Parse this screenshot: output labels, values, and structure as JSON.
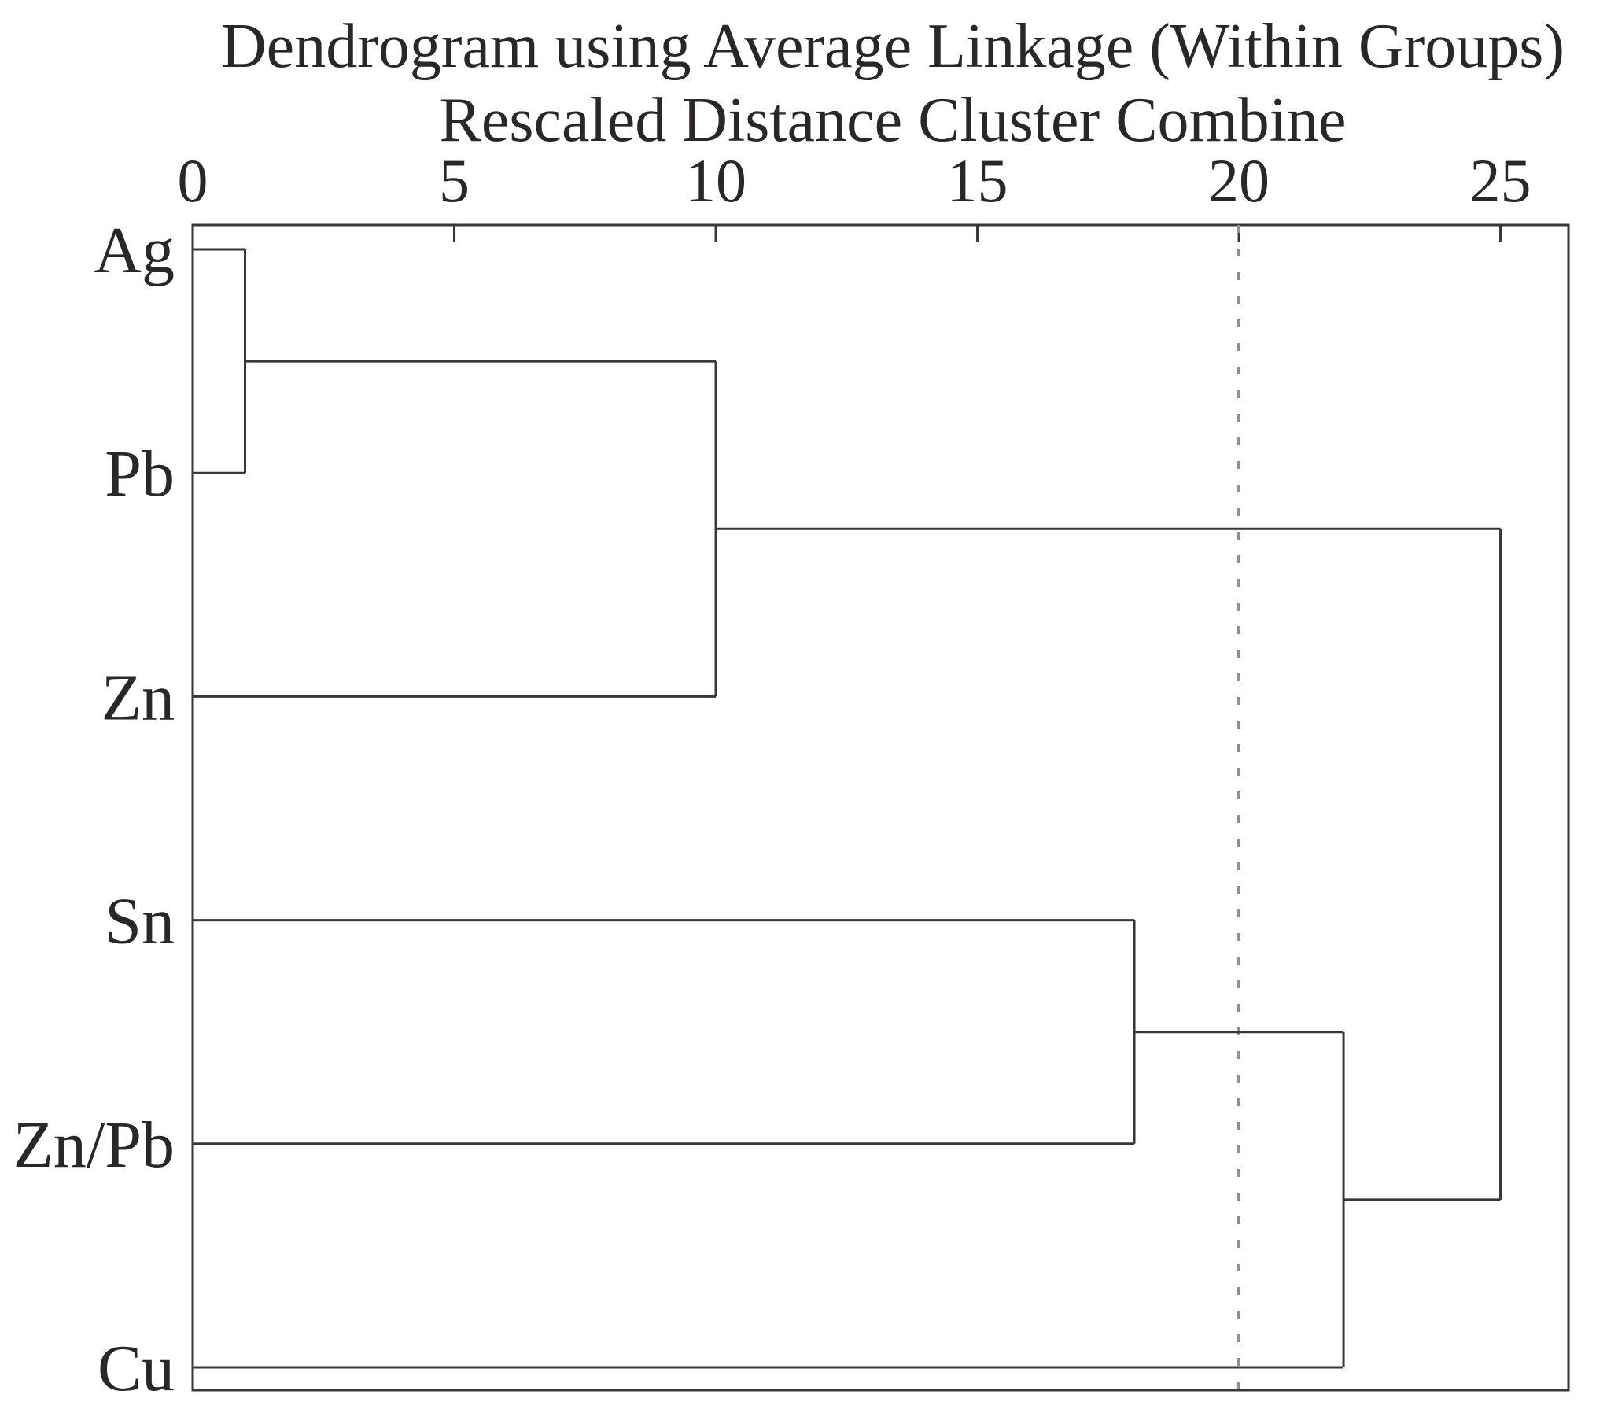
{
  "chart_data": {
    "type": "dendrogram",
    "orientation": "horizontal",
    "title": "Dendrogram using Average Linkage (Within Groups)",
    "subtitle": "Rescaled Distance Cluster Combine",
    "xlabel": "Rescaled Distance Cluster Combine",
    "leaves": [
      "Ag",
      "Pb",
      "Zn",
      "Sn",
      "Zn/Pb",
      "Cu"
    ],
    "linkage_note": "scipy-style: nodes 0-5 are leaves in listed order, node 6+k is the k-th merge; each row = [nodeA, nodeB, rescaled_distance]",
    "linkage": [
      [
        0,
        1,
        1.0
      ],
      [
        6,
        2,
        10.0
      ],
      [
        3,
        4,
        18.0
      ],
      [
        8,
        5,
        22.0
      ],
      [
        7,
        9,
        25.0
      ]
    ],
    "merges": [
      {
        "members": [
          "Ag",
          "Pb"
        ],
        "distance": 1.0
      },
      {
        "members": [
          "Ag+Pb",
          "Zn"
        ],
        "distance": 10.0
      },
      {
        "members": [
          "Sn",
          "Zn/Pb"
        ],
        "distance": 18.0
      },
      {
        "members": [
          "Sn+Zn/Pb",
          "Cu"
        ],
        "distance": 22.0
      },
      {
        "members": [
          "Ag+Pb+Zn",
          "Sn+Zn/Pb+Cu"
        ],
        "distance": 25.0
      }
    ],
    "x_ticks": [
      0,
      5,
      10,
      15,
      20,
      25
    ],
    "xlim": [
      0,
      26.3
    ],
    "cutoff_line": {
      "value": 20,
      "style": "dashed",
      "color": "#8f8f8f"
    },
    "grid": false,
    "legend": false,
    "line_color": "#3a3536",
    "text_color": "#2b2627"
  }
}
